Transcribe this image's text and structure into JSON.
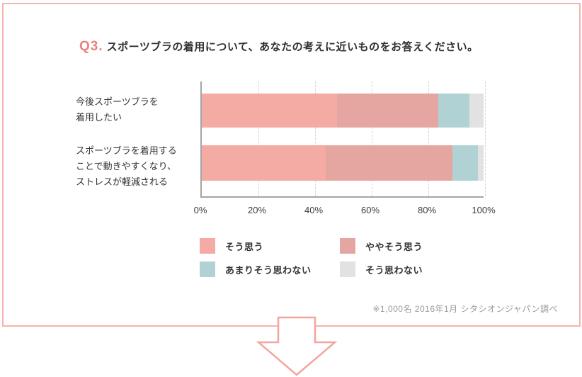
{
  "title": {
    "prefix": "Q3.",
    "text": "スポーツブラの着用について、あなたの考えに近いものをお答えください。"
  },
  "chart_data": {
    "type": "bar",
    "subtype": "horizontal-stacked",
    "title": "Q3. スポーツブラの着用について、あなたの考えに近いものをお答えください。",
    "categories": [
      {
        "lines": [
          "今後スポーツブラを",
          "着用したい"
        ]
      },
      {
        "lines": [
          "スポーツブラを着用する",
          "ことで動きやすくなり、",
          "ストレスが軽減される"
        ]
      }
    ],
    "series": [
      {
        "name": "そう思う",
        "color": "#F3ABA3",
        "values": [
          48,
          44
        ]
      },
      {
        "name": "ややそう思う",
        "color": "#E5A5A1",
        "values": [
          36,
          45
        ]
      },
      {
        "name": "あまりそう思わない",
        "color": "#B1D2D5",
        "values": [
          11,
          9
        ]
      },
      {
        "name": "そう思わない",
        "color": "#E2E2E2",
        "values": [
          5,
          2
        ]
      }
    ],
    "x_tick_labels": [
      "0%",
      "20%",
      "40%",
      "60%",
      "80%",
      "100%"
    ],
    "x_tick_values": [
      0,
      20,
      40,
      60,
      80,
      100
    ],
    "xlim": [
      0,
      100
    ],
    "unit": "%",
    "grid": "dashed-vertical",
    "legend_position": "below"
  },
  "footnote": "※1,000名 2016年1月 シタシオンジャパン調べ",
  "colors": {
    "accent": "#E8827D",
    "card_border": "#F6B3AD",
    "axis": "#A5A5A5",
    "gridline": "#D3D3D3",
    "arrow_stroke": "#F3A59F"
  }
}
